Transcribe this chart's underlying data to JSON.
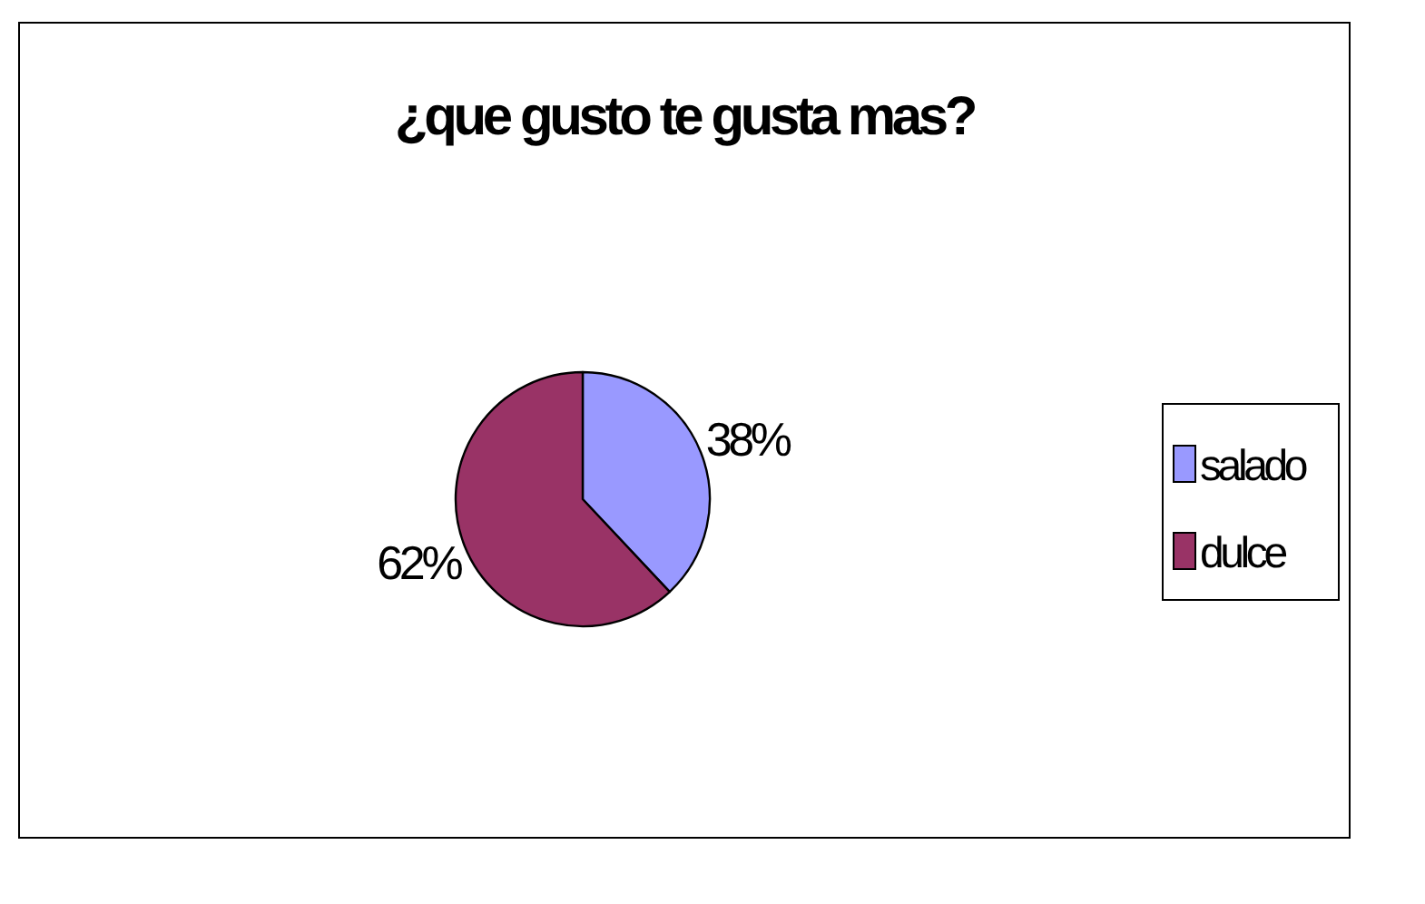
{
  "chart_data": {
    "type": "pie",
    "title": "¿que gusto te gusta mas?",
    "categories": [
      "salado",
      "dulce"
    ],
    "values": [
      38,
      62
    ],
    "colors": [
      "#9999ff",
      "#993366"
    ],
    "value_labels": [
      "38%",
      "62%"
    ],
    "legend": "right"
  }
}
